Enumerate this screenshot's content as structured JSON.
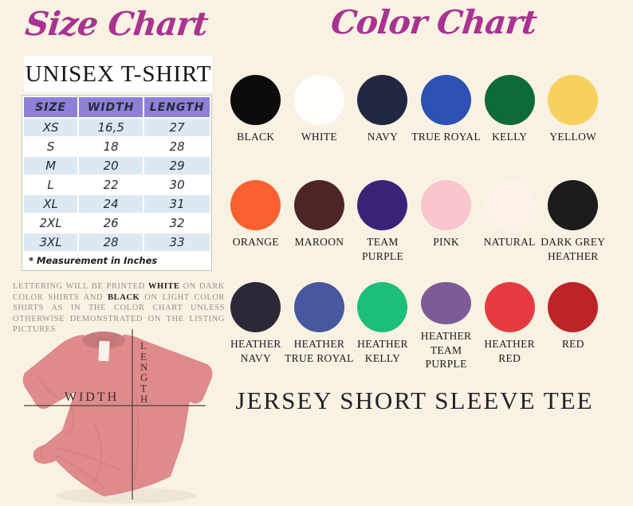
{
  "theme": {
    "background": "#f9f2e3",
    "accent_magenta": "#a93390"
  },
  "size_chart": {
    "title": "Size Chart",
    "product_heading": "UNISEX T-SHIRT",
    "table": {
      "headers": [
        "SIZE",
        "WIDTH",
        "LENGTH"
      ],
      "rows": [
        [
          "XS",
          "16,5",
          "27"
        ],
        [
          "S",
          "18",
          "28"
        ],
        [
          "M",
          "20",
          "29"
        ],
        [
          "L",
          "22",
          "30"
        ],
        [
          "XL",
          "24",
          "31"
        ],
        [
          "2XL",
          "26",
          "32"
        ],
        [
          "3XL",
          "28",
          "33"
        ]
      ],
      "footnote": "* Measurement in Inches",
      "header_bg": "#8f80d6",
      "alt_row_bg": "#dce9f3"
    },
    "printing_note": {
      "part1": "LETTERING WILL BE PRINTED ",
      "bold1": "WHITE",
      "part2": " ON DARK COLOR SHIRTS AND ",
      "bold2": "BLACK",
      "part3": " ON LIGHT COLOR SHIRTS AS IN THE COLOR CHART UNLESS OTHERWISE DEMONSTRATED ON THE LISTING PICTURES"
    },
    "shirt_diagram": {
      "width_label": "WIDTH",
      "length_label": "LENGTH",
      "shirt_color": "#df8a8b"
    }
  },
  "color_chart": {
    "title": "Color Chart",
    "colors": [
      {
        "name": "BLACK",
        "hex": "#0d0c0d"
      },
      {
        "name": "WHITE",
        "hex": "#fffefb"
      },
      {
        "name": "NAVY",
        "hex": "#212741"
      },
      {
        "name": "TRUE ROYAL",
        "hex": "#2d52b4"
      },
      {
        "name": "KELLY",
        "hex": "#0e6b37"
      },
      {
        "name": "YELLOW",
        "hex": "#f8d05c"
      },
      {
        "name": "ORANGE",
        "hex": "#f96030"
      },
      {
        "name": "MAROON",
        "hex": "#4e2527"
      },
      {
        "name": "TEAM PURPLE",
        "hex": "#3b2279"
      },
      {
        "name": "PINK",
        "hex": "#f9c5cf"
      },
      {
        "name": "NATURAL",
        "hex": "#fdf2e9"
      },
      {
        "name": "DARK GREY HEATHER",
        "hex": "#1c1c1d"
      },
      {
        "name": "HEATHER NAVY",
        "hex": "#2c2838"
      },
      {
        "name": "HEATHER TRUE ROYAL",
        "hex": "#47589f"
      },
      {
        "name": "HEATHER KELLY",
        "hex": "#1dbe7a"
      },
      {
        "name": "HEATHER TEAM PURPLE",
        "hex": "#7d5b96"
      },
      {
        "name": "HEATHER RED",
        "hex": "#e63a40"
      },
      {
        "name": "RED",
        "hex": "#bd2427"
      }
    ]
  },
  "footer": {
    "product_name": "JERSEY SHORT SLEEVE TEE"
  }
}
